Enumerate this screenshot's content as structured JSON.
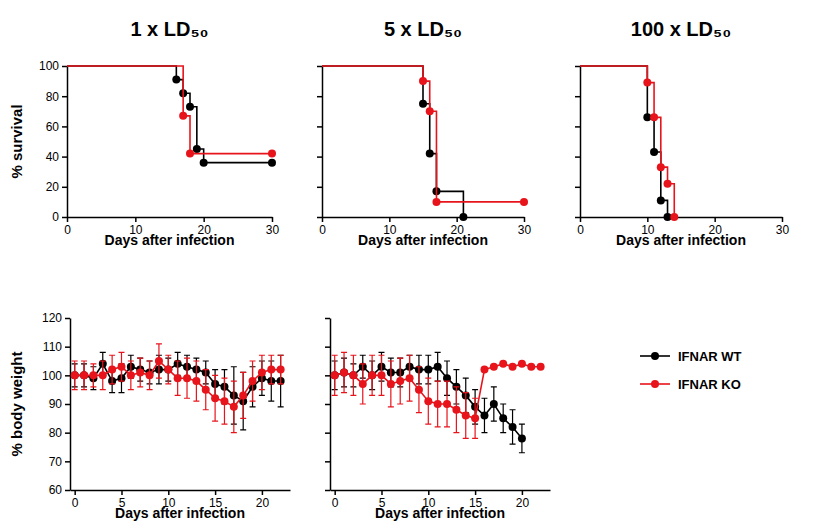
{
  "chart_data": [
    {
      "type": "line",
      "title": "1 x LD₅₀",
      "xlabel": "Days after infection",
      "ylabel": "% survival",
      "xlim": [
        0,
        30
      ],
      "xticks": [
        0,
        10,
        20,
        30
      ],
      "ylim": [
        0,
        100
      ],
      "yticks": [
        0,
        20,
        40,
        60,
        80,
        100
      ],
      "grid": false,
      "series": [
        {
          "name": "IFNAR WT",
          "color": "#000000",
          "marker": "circle",
          "line_style": "step",
          "x": [
            0,
            16,
            17,
            18,
            19,
            20,
            30
          ],
          "values": [
            100,
            91,
            82,
            73,
            45,
            36,
            36
          ]
        },
        {
          "name": "IFNAR KO",
          "color": "#e8141c",
          "marker": "circle",
          "line_style": "step",
          "x": [
            0,
            17,
            18,
            30
          ],
          "values": [
            100,
            67,
            42,
            42
          ]
        }
      ]
    },
    {
      "type": "line",
      "title": "5 x LD₅₀",
      "xlabel": "Days after infection",
      "tick_labels": "x",
      "xlim": [
        0,
        30
      ],
      "xticks": [
        0,
        10,
        20,
        30
      ],
      "ylim": [
        0,
        100
      ],
      "yticks": [
        0,
        20,
        40,
        60,
        80,
        100
      ],
      "grid": false,
      "series": [
        {
          "name": "IFNAR WT",
          "color": "#000000",
          "marker": "circle",
          "line_style": "step",
          "x": [
            0,
            15,
            16,
            17,
            21
          ],
          "values": [
            100,
            75,
            42,
            17,
            0
          ]
        },
        {
          "name": "IFNAR KO",
          "color": "#e8141c",
          "marker": "circle",
          "line_style": "step",
          "x": [
            0,
            15,
            16,
            17,
            30
          ],
          "values": [
            100,
            90,
            70,
            10,
            10
          ]
        }
      ]
    },
    {
      "type": "line",
      "title": "100 x LD₅₀",
      "xlabel": "Days after infection",
      "tick_labels": "x",
      "xlim": [
        0,
        30
      ],
      "xticks": [
        0,
        10,
        20,
        30
      ],
      "ylim": [
        0,
        100
      ],
      "yticks": [
        0,
        20,
        40,
        60,
        80,
        100
      ],
      "grid": false,
      "series": [
        {
          "name": "IFNAR WT",
          "color": "#000000",
          "marker": "circle",
          "line_style": "step",
          "x": [
            0,
            10,
            11,
            12,
            13
          ],
          "values": [
            100,
            66,
            43,
            11,
            0
          ]
        },
        {
          "name": "IFNAR KO",
          "color": "#e8141c",
          "marker": "circle",
          "line_style": "step",
          "x": [
            0,
            10,
            11,
            12,
            13,
            14
          ],
          "values": [
            100,
            89,
            66,
            33,
            22,
            0
          ]
        }
      ]
    },
    {
      "type": "line",
      "xlabel": "Days after infection",
      "ylabel": "% body weight",
      "xlim": [
        -0.5,
        23
      ],
      "xticks": [
        0,
        5,
        10,
        15,
        20
      ],
      "ylim": [
        60,
        120
      ],
      "yticks": [
        60,
        70,
        80,
        90,
        100,
        110,
        120
      ],
      "grid": false,
      "series": [
        {
          "name": "IFNAR WT",
          "color": "#000000",
          "marker": "circle",
          "line_style": "solid",
          "x": [
            0,
            1,
            2,
            3,
            4,
            5,
            6,
            7,
            8,
            9,
            10,
            11,
            12,
            13,
            14,
            15,
            16,
            17,
            18,
            19,
            20,
            21,
            22
          ],
          "values": [
            100,
            100,
            99,
            104,
            98,
            99,
            103,
            102,
            101,
            102,
            102,
            104,
            103,
            102,
            101,
            97,
            96,
            93,
            91,
            96,
            99,
            98,
            98
          ],
          "errors": [
            4,
            4,
            4,
            4,
            4,
            5,
            4,
            4,
            4,
            5,
            4,
            4,
            4,
            4,
            4,
            5,
            6,
            10,
            10,
            7,
            6,
            7,
            9
          ]
        },
        {
          "name": "IFNAR KO",
          "color": "#e8141c",
          "marker": "circle",
          "line_style": "solid",
          "x": [
            0,
            1,
            2,
            3,
            4,
            5,
            6,
            7,
            8,
            9,
            10,
            11,
            12,
            13,
            14,
            15,
            16,
            17,
            18,
            19,
            20,
            21,
            22
          ],
          "values": [
            100,
            100,
            100,
            100,
            102,
            103,
            100,
            101,
            100,
            105,
            102,
            99,
            99,
            98,
            95,
            92,
            91,
            89,
            93,
            98,
            101,
            102,
            102
          ],
          "errors": [
            5,
            5,
            4,
            5,
            5,
            5,
            5,
            5,
            5,
            6,
            5,
            6,
            7,
            7,
            7,
            8,
            8,
            9,
            8,
            7,
            6,
            5,
            5
          ]
        }
      ]
    },
    {
      "type": "line",
      "xlabel": "Days after infection",
      "tick_labels": "x",
      "legend": "right",
      "xlim": [
        -0.5,
        23
      ],
      "xticks": [
        0,
        5,
        10,
        15,
        20
      ],
      "ylim": [
        60,
        120
      ],
      "yticks": [
        60,
        70,
        80,
        90,
        100,
        110,
        120
      ],
      "grid": false,
      "series": [
        {
          "name": "IFNAR WT",
          "color": "#000000",
          "marker": "circle",
          "line_style": "solid",
          "x": [
            0,
            1,
            2,
            3,
            4,
            5,
            6,
            7,
            8,
            9,
            10,
            11,
            12,
            13,
            14,
            15,
            16,
            17,
            18,
            19,
            20
          ],
          "values": [
            100,
            101,
            100,
            103,
            100,
            103,
            101,
            101,
            103,
            102,
            102,
            103,
            99,
            96,
            93,
            89,
            86,
            90,
            85,
            82,
            78
          ],
          "errors": [
            5,
            5,
            4,
            4,
            5,
            5,
            5,
            5,
            4,
            5,
            5,
            5,
            6,
            6,
            6,
            6,
            6,
            6,
            5,
            6,
            5
          ]
        },
        {
          "name": "IFNAR KO",
          "color": "#e8141c",
          "marker": "circle",
          "line_style": "solid",
          "x": [
            0,
            1,
            2,
            3,
            4,
            5,
            6,
            7,
            8,
            9,
            10,
            11,
            12,
            13,
            14,
            15,
            16,
            17,
            18,
            19,
            20,
            21,
            22
          ],
          "values": [
            100,
            101,
            100,
            97,
            100,
            100,
            97,
            98,
            99,
            95,
            91,
            90,
            90,
            88,
            86,
            85,
            102,
            103,
            104,
            103,
            104,
            103,
            103
          ],
          "errors": [
            7,
            7,
            7,
            7,
            7,
            7,
            8,
            8,
            8,
            8,
            8,
            8,
            8,
            8,
            8,
            7,
            0,
            0,
            0,
            0,
            0,
            0,
            0
          ]
        }
      ]
    }
  ]
}
